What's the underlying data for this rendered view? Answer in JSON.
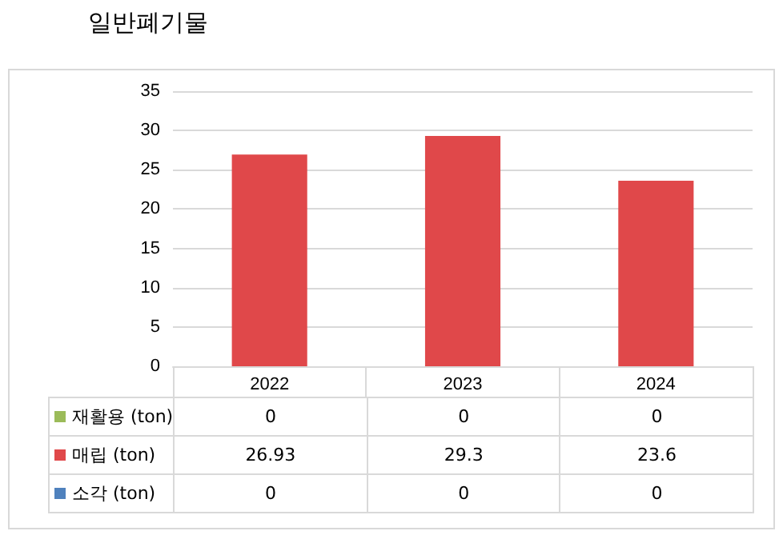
{
  "chart_data": {
    "type": "bar",
    "title": "일반폐기물",
    "categories": [
      "2022",
      "2023",
      "2024"
    ],
    "series": [
      {
        "name": "재활용 (ton)",
        "color": "#9bbb59",
        "values": [
          0,
          0,
          0
        ]
      },
      {
        "name": "매립 (ton)",
        "color": "#e0484a",
        "values": [
          26.93,
          29.3,
          23.6
        ]
      },
      {
        "name": "소각 (ton)",
        "color": "#4f81bd",
        "values": [
          0,
          0,
          0
        ]
      }
    ],
    "ylim": [
      0,
      35
    ],
    "yticks": [
      0,
      5,
      10,
      15,
      20,
      25,
      30,
      35
    ],
    "grid": "y",
    "legend": "bottom",
    "data_labels": true
  }
}
